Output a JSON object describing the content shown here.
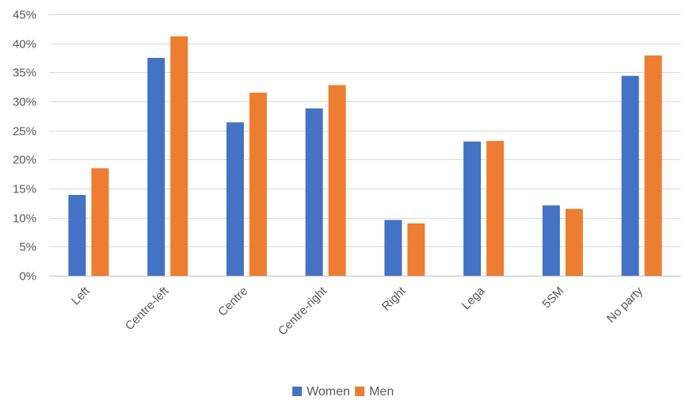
{
  "chart_data": {
    "type": "bar",
    "title": "",
    "xlabel": "",
    "ylabel": "",
    "categories": [
      "Left",
      "Centre-left",
      "Centre",
      "Centre-right",
      "Right",
      "Lega",
      "5SM",
      "No party"
    ],
    "series": [
      {
        "name": "Women",
        "color": "#4472C4",
        "values": [
          13.9,
          37.5,
          26.4,
          28.8,
          9.6,
          23.1,
          12.1,
          34.4
        ]
      },
      {
        "name": "Men",
        "color": "#ED7D31",
        "values": [
          18.5,
          41.2,
          31.5,
          32.8,
          9.0,
          23.2,
          11.5,
          37.9
        ]
      }
    ],
    "ylim": [
      0,
      45
    ],
    "yticks": [
      0,
      5,
      10,
      15,
      20,
      25,
      30,
      35,
      40,
      45
    ],
    "ytick_labels": [
      "0%",
      "5%",
      "10%",
      "15%",
      "20%",
      "25%",
      "30%",
      "35%",
      "40%",
      "45%"
    ],
    "grid": true,
    "legend_position": "bottom",
    "gridline_color": "#D9D9D9",
    "axis_color": "#BFBFBF"
  }
}
